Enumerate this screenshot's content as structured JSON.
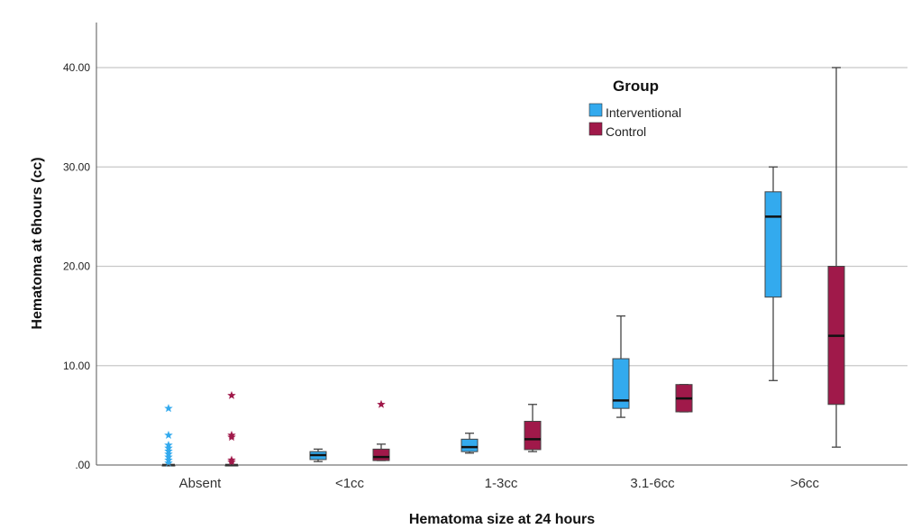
{
  "chart_data": {
    "type": "boxplot",
    "xlabel": "Hematoma size at 24 hours",
    "ylabel": "Hematoma at 6hours (cc)",
    "ylim": [
      0,
      44
    ],
    "yticks": [
      0,
      10,
      20,
      30,
      40
    ],
    "ytick_labels": [
      ".00",
      "10.00",
      "20.00",
      "30.00",
      "40.00"
    ],
    "grid": true,
    "categories": [
      "Absent",
      "<1cc",
      "1-3cc",
      "3.1-6cc",
      ">6cc"
    ],
    "legend": {
      "title": "Group",
      "placement": "top-right"
    },
    "series": [
      {
        "name": "Interventional",
        "color": "#33aaee",
        "boxes": [
          {
            "min": 0,
            "q1": 0,
            "median": 0,
            "q3": 0,
            "max": 0,
            "outliers": [
              5.7,
              3.0,
              2.0,
              1.7,
              1.4,
              1.1,
              0.8,
              0.5,
              0.2
            ]
          },
          {
            "min": 0.35,
            "q1": 0.55,
            "median": 1.0,
            "q3": 1.35,
            "max": 1.6,
            "outliers": []
          },
          {
            "min": 1.2,
            "q1": 1.35,
            "median": 1.8,
            "q3": 2.6,
            "max": 3.2,
            "outliers": []
          },
          {
            "min": 4.8,
            "q1": 5.7,
            "median": 6.5,
            "q3": 10.7,
            "max": 15.0,
            "outliers": []
          },
          {
            "min": 8.5,
            "q1": 16.9,
            "median": 25.0,
            "q3": 27.5,
            "max": 30.0,
            "outliers": []
          }
        ]
      },
      {
        "name": "Control",
        "color": "#a0194a",
        "boxes": [
          {
            "min": 0,
            "q1": 0,
            "median": 0,
            "q3": 0,
            "max": 0,
            "outliers": [
              7.0,
              3.0,
              2.8,
              0.5,
              0.3
            ]
          },
          {
            "min": 0.45,
            "q1": 0.45,
            "median": 0.8,
            "q3": 1.6,
            "max": 2.1,
            "outliers": [
              6.1
            ]
          },
          {
            "min": 1.35,
            "q1": 1.55,
            "median": 2.6,
            "q3": 4.4,
            "max": 6.1,
            "outliers": []
          },
          {
            "min": 5.35,
            "q1": 5.35,
            "median": 6.7,
            "q3": 8.1,
            "max": 8.1,
            "outliers": []
          },
          {
            "min": 1.8,
            "q1": 6.1,
            "median": 13.0,
            "q3": 20.0,
            "max": 40.0,
            "outliers": []
          }
        ]
      }
    ]
  }
}
